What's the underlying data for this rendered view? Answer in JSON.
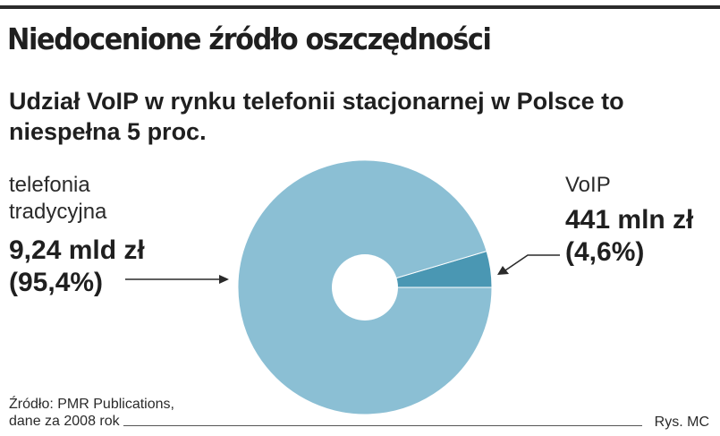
{
  "title": "Niedocenione źródło oszczędności",
  "subtitle": "Udział VoIP w rynku telefonii stacjonarnej w Polsce to niespełna 5 proc.",
  "chart_data": {
    "type": "pie",
    "title": "Niedocenione źródło oszczędności",
    "subtitle": "Udział VoIP w rynku telefonii stacjonarnej w Polsce to niespełna 5 proc.",
    "slices": [
      {
        "label": "telefonia tradycyjna",
        "value_text": "9,24 mld zł",
        "percent_text": "(95,4%)",
        "percent": 95.4,
        "color": "#8bbfd4"
      },
      {
        "label": "VoIP",
        "value_text": "441 mln zł",
        "percent_text": "(4,6%)",
        "percent": 4.6,
        "color": "#4a97b3"
      }
    ]
  },
  "source": {
    "line1": "Źródło: PMR Publications,",
    "line2": "dane za 2008 rok"
  },
  "credit": "Rys. MC",
  "colors": {
    "traditional": "#8bbfd4",
    "voip": "#4a97b3",
    "rule": "#2b2b2b"
  }
}
